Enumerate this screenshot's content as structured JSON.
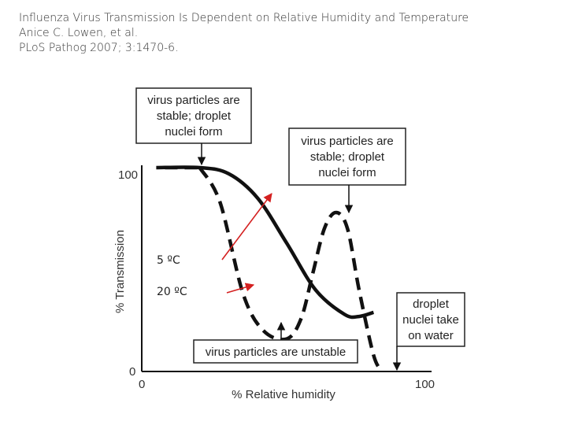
{
  "citation": {
    "line1": "Influenza Virus Transmission Is Dependent on Relative Humidity and Temperature",
    "line2": "Anice C. Lowen, et al.",
    "line3": "PLoS Pathog 2007; 3:1470-6."
  },
  "annotations": {
    "top_left": [
      "virus particles are",
      "stable; droplet",
      "nuclei form"
    ],
    "top_right": [
      "virus particles are",
      "stable; droplet",
      "nuclei form"
    ],
    "bottom_center": [
      "virus particles are unstable"
    ],
    "bottom_right": [
      "droplet",
      "nuclei take",
      "on water"
    ]
  },
  "chart_data": {
    "type": "line",
    "xlabel": "% Relative humidity",
    "ylabel": "% Transmission",
    "xlim": [
      0,
      100
    ],
    "ylim": [
      0,
      100
    ],
    "x_ticks": [
      "0",
      "100"
    ],
    "y_ticks": [
      "0",
      "100"
    ],
    "grid": false,
    "series": [
      {
        "name": "5 ºC",
        "style": "solid",
        "color": "#111111",
        "x": [
          5,
          20,
          30,
          40,
          50,
          60,
          70,
          75,
          80
        ],
        "y": [
          100,
          100,
          97,
          85,
          63,
          40,
          28,
          27,
          29
        ]
      },
      {
        "name": "20 ºC",
        "style": "dashed",
        "color": "#111111",
        "x": [
          20,
          27,
          35,
          42,
          50,
          55,
          59,
          63,
          67,
          71,
          75,
          80,
          83
        ],
        "y": [
          100,
          83,
          38,
          20,
          16,
          26,
          48,
          70,
          78,
          70,
          40,
          8,
          0
        ]
      }
    ],
    "series_labels": [
      "5 ºC",
      "20 ºC"
    ],
    "arrow_color": "#d42020"
  }
}
